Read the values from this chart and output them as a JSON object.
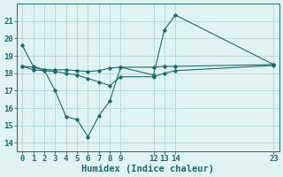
{
  "title": "",
  "xlabel": "Humidex (Indice chaleur)",
  "ylabel": "",
  "bg_color": "#e0f2f2",
  "grid_color": "#b8dada",
  "line_color": "#1a6b6b",
  "xlim": [
    -0.5,
    23.5
  ],
  "ylim": [
    13.5,
    22.0
  ],
  "yticks": [
    14,
    15,
    16,
    17,
    18,
    19,
    20,
    21
  ],
  "xticks": [
    0,
    1,
    2,
    3,
    4,
    5,
    6,
    7,
    8,
    9,
    12,
    13,
    14,
    23
  ],
  "lines": [
    {
      "x": [
        0,
        1,
        2,
        3,
        4,
        5,
        6,
        7,
        8,
        9,
        12,
        13,
        14,
        23
      ],
      "y": [
        19.6,
        18.4,
        18.2,
        17.0,
        15.5,
        15.35,
        14.35,
        15.55,
        16.4,
        18.35,
        17.9,
        20.5,
        21.35,
        18.5
      ]
    },
    {
      "x": [
        0,
        1,
        2,
        3,
        4,
        5,
        6,
        7,
        8,
        9,
        12,
        13,
        14,
        23
      ],
      "y": [
        18.4,
        18.35,
        18.2,
        18.2,
        18.2,
        18.15,
        18.1,
        18.15,
        18.3,
        18.35,
        18.35,
        18.4,
        18.4,
        18.5
      ]
    },
    {
      "x": [
        0,
        1,
        2,
        3,
        4,
        5,
        6,
        7,
        8,
        9,
        12,
        13,
        14,
        23
      ],
      "y": [
        18.4,
        18.2,
        18.15,
        18.1,
        18.0,
        17.9,
        17.7,
        17.5,
        17.3,
        17.8,
        17.8,
        18.0,
        18.15,
        18.45
      ]
    }
  ],
  "font_family": "monospace",
  "tick_fontsize": 6.5,
  "label_fontsize": 7.5
}
